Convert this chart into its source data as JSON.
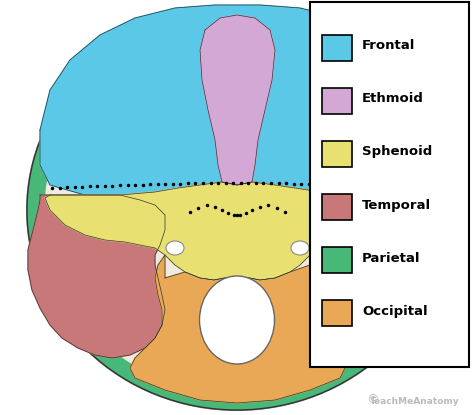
{
  "legend_items": [
    {
      "label": "Frontal",
      "color": "#5BC8E8"
    },
    {
      "label": "Ethmoid",
      "color": "#D4A8D4"
    },
    {
      "label": "Sphenoid",
      "color": "#E8E070"
    },
    {
      "label": "Temporal",
      "color": "#C87878"
    },
    {
      "label": "Parietal",
      "color": "#48B878"
    },
    {
      "label": "Occipital",
      "color": "#E8A855"
    }
  ],
  "legend_box_color": "#FFFFFF",
  "legend_box_edge": "#000000",
  "watermark_text": "TeachMeAnatomy",
  "watermark_color": "#BBBBBB",
  "background_color": "#FFFFFF",
  "patch_edge_color": "#333333",
  "legend_fontsize": 9.5,
  "legend_fontweight": "bold"
}
